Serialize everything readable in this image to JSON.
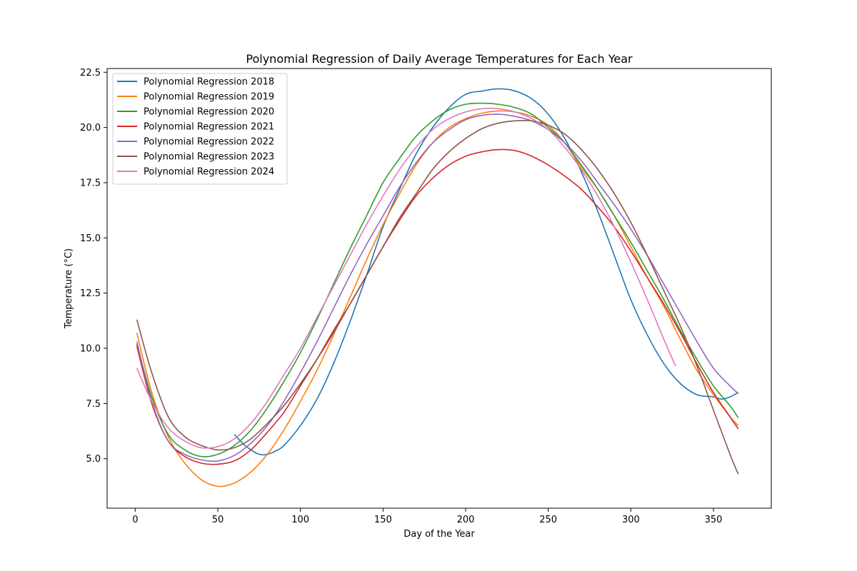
{
  "chart_data": {
    "type": "line",
    "title": "Polynomial Regression of Daily Average Temperatures for Each Year",
    "xlabel": "Day of the Year",
    "ylabel": "Temperature (°C)",
    "xlim": [
      -17,
      385
    ],
    "ylim": [
      2.76,
      22.67
    ],
    "xticks": [
      0,
      50,
      100,
      150,
      200,
      250,
      300,
      350
    ],
    "yticks": [
      5.0,
      7.5,
      10.0,
      12.5,
      15.0,
      17.5,
      20.0,
      22.5
    ],
    "ytick_labels": [
      "5.0",
      "7.5",
      "10.0",
      "12.5",
      "15.0",
      "17.5",
      "20.0",
      "22.5"
    ],
    "legend_position": "upper left",
    "grid": false,
    "series": [
      {
        "name": "Polynomial Regression 2018",
        "color": "#1f77b4",
        "x": [
          60,
          65,
          70,
          75,
          80,
          85,
          90,
          100,
          110,
          120,
          130,
          140,
          150,
          160,
          170,
          180,
          190,
          200,
          210,
          220,
          230,
          240,
          250,
          260,
          270,
          280,
          290,
          300,
          310,
          320,
          330,
          340,
          350,
          355,
          360,
          365
        ],
        "y": [
          6.1,
          5.7,
          5.4,
          5.2,
          5.2,
          5.35,
          5.6,
          6.5,
          7.7,
          9.3,
          11.2,
          13.3,
          15.5,
          17.2,
          18.8,
          20.0,
          20.9,
          21.5,
          21.65,
          21.75,
          21.65,
          21.3,
          20.6,
          19.5,
          18.0,
          16.2,
          14.2,
          12.2,
          10.6,
          9.3,
          8.4,
          7.9,
          7.8,
          7.7,
          7.8,
          8.0
        ]
      },
      {
        "name": "Polynomial Regression 2019",
        "color": "#ff7f0e",
        "x": [
          1,
          10,
          20,
          30,
          40,
          50,
          60,
          70,
          80,
          90,
          100,
          110,
          120,
          130,
          140,
          150,
          160,
          170,
          180,
          190,
          200,
          210,
          220,
          230,
          240,
          250,
          260,
          270,
          280,
          290,
          300,
          310,
          320,
          330,
          340,
          350,
          360,
          365
        ],
        "y": [
          10.7,
          8.0,
          6.0,
          4.8,
          4.05,
          3.75,
          3.9,
          4.4,
          5.2,
          6.3,
          7.6,
          9.0,
          10.6,
          12.3,
          14.0,
          15.6,
          17.0,
          18.3,
          19.3,
          20.0,
          20.4,
          20.65,
          20.75,
          20.7,
          20.5,
          20.1,
          19.3,
          18.2,
          17.2,
          16.0,
          14.6,
          13.2,
          11.9,
          10.4,
          9.0,
          7.9,
          6.9,
          6.5
        ]
      },
      {
        "name": "Polynomial Regression 2020",
        "color": "#2ca02c",
        "x": [
          1,
          10,
          20,
          30,
          40,
          50,
          60,
          70,
          80,
          90,
          100,
          110,
          120,
          130,
          140,
          150,
          160,
          170,
          180,
          190,
          200,
          210,
          220,
          230,
          240,
          250,
          260,
          270,
          280,
          290,
          300,
          310,
          320,
          330,
          340,
          350,
          360,
          365
        ],
        "y": [
          10.2,
          7.8,
          6.1,
          5.4,
          5.1,
          5.2,
          5.6,
          6.3,
          7.3,
          8.5,
          9.8,
          11.3,
          12.9,
          14.5,
          16.0,
          17.5,
          18.6,
          19.6,
          20.3,
          20.8,
          21.05,
          21.1,
          21.05,
          20.9,
          20.6,
          20.0,
          19.3,
          18.3,
          17.2,
          16.0,
          14.8,
          13.5,
          12.2,
          10.8,
          9.5,
          8.3,
          7.4,
          6.85
        ]
      },
      {
        "name": "Polynomial Regression 2021",
        "color": "#d62728",
        "x": [
          1,
          10,
          20,
          30,
          40,
          50,
          60,
          70,
          80,
          90,
          100,
          110,
          120,
          130,
          140,
          150,
          160,
          170,
          180,
          190,
          200,
          210,
          220,
          230,
          240,
          250,
          260,
          270,
          280,
          290,
          300,
          310,
          320,
          330,
          340,
          350,
          360,
          365
        ],
        "y": [
          10.1,
          7.5,
          5.8,
          5.1,
          4.8,
          4.75,
          4.9,
          5.4,
          6.2,
          7.1,
          8.3,
          9.5,
          10.8,
          12.0,
          13.3,
          14.6,
          15.8,
          16.9,
          17.7,
          18.3,
          18.7,
          18.9,
          19.0,
          18.95,
          18.7,
          18.3,
          17.8,
          17.2,
          16.4,
          15.5,
          14.4,
          13.2,
          12.0,
          10.7,
          9.3,
          8.0,
          6.9,
          6.35
        ]
      },
      {
        "name": "Polynomial Regression 2022",
        "color": "#9467bd",
        "x": [
          1,
          10,
          20,
          30,
          40,
          50,
          60,
          70,
          80,
          90,
          100,
          110,
          120,
          130,
          140,
          150,
          160,
          170,
          180,
          190,
          200,
          210,
          220,
          230,
          240,
          250,
          260,
          270,
          280,
          290,
          300,
          310,
          320,
          330,
          340,
          350,
          360,
          365
        ],
        "y": [
          10.3,
          7.6,
          5.8,
          5.2,
          4.95,
          4.9,
          5.15,
          5.7,
          6.5,
          7.6,
          8.9,
          10.3,
          11.8,
          13.3,
          14.7,
          16.0,
          17.3,
          18.4,
          19.3,
          19.9,
          20.35,
          20.55,
          20.6,
          20.5,
          20.3,
          19.9,
          19.3,
          18.5,
          17.5,
          16.5,
          15.4,
          14.2,
          12.9,
          11.6,
          10.3,
          9.1,
          8.3,
          7.95
        ]
      },
      {
        "name": "Polynomial Regression 2023",
        "color": "#8c564b",
        "x": [
          1,
          10,
          20,
          30,
          40,
          50,
          60,
          70,
          80,
          90,
          100,
          110,
          120,
          130,
          140,
          150,
          160,
          170,
          180,
          190,
          200,
          210,
          220,
          230,
          240,
          250,
          260,
          270,
          280,
          290,
          300,
          310,
          320,
          330,
          340,
          350,
          360,
          365
        ],
        "y": [
          11.3,
          8.9,
          6.9,
          6.0,
          5.6,
          5.4,
          5.5,
          5.9,
          6.6,
          7.4,
          8.4,
          9.5,
          10.7,
          12.0,
          13.3,
          14.6,
          15.9,
          17.0,
          18.1,
          18.9,
          19.5,
          19.95,
          20.2,
          20.3,
          20.3,
          20.1,
          19.7,
          19.0,
          18.1,
          17.0,
          15.7,
          14.2,
          12.6,
          11.0,
          9.2,
          7.2,
          5.2,
          4.3
        ]
      },
      {
        "name": "Polynomial Regression 2024",
        "color": "#e377c2",
        "x": [
          1,
          10,
          20,
          30,
          40,
          50,
          60,
          70,
          80,
          90,
          100,
          110,
          120,
          130,
          140,
          150,
          160,
          170,
          180,
          190,
          200,
          210,
          220,
          230,
          240,
          250,
          260,
          270,
          280,
          290,
          300,
          310,
          320,
          327
        ],
        "y": [
          9.1,
          7.6,
          6.4,
          5.8,
          5.5,
          5.55,
          5.9,
          6.6,
          7.6,
          8.8,
          10.0,
          11.4,
          12.8,
          14.2,
          15.6,
          16.9,
          18.1,
          19.1,
          19.9,
          20.4,
          20.7,
          20.85,
          20.85,
          20.7,
          20.4,
          19.9,
          19.1,
          18.1,
          16.9,
          15.5,
          13.9,
          12.2,
          10.4,
          9.2
        ]
      }
    ]
  }
}
